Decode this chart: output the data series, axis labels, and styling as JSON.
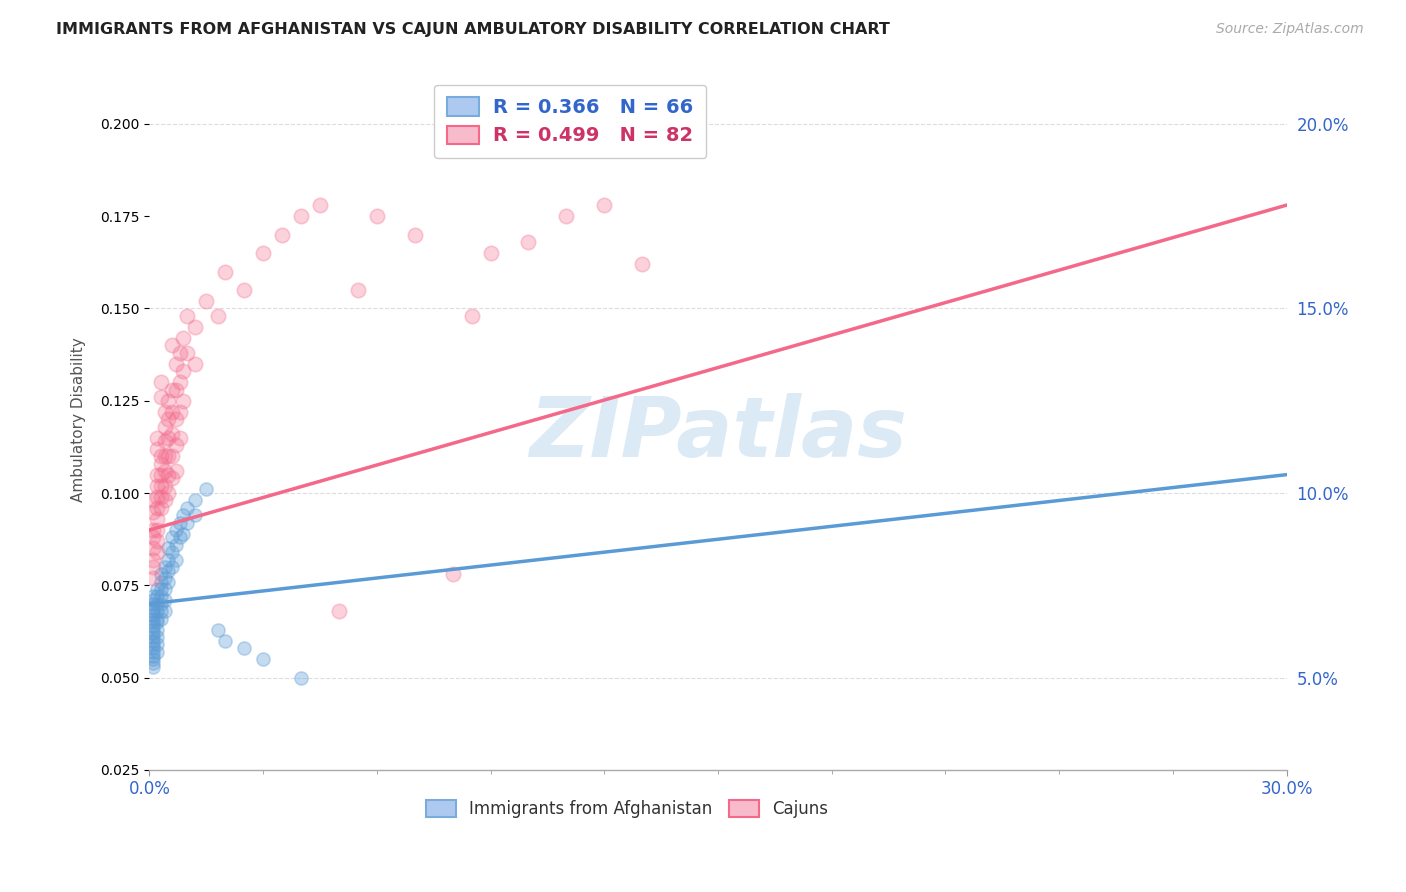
{
  "title": "IMMIGRANTS FROM AFGHANISTAN VS CAJUN AMBULATORY DISABILITY CORRELATION CHART",
  "source": "Source: ZipAtlas.com",
  "ylabel": "Ambulatory Disability",
  "xlim": [
    0.0,
    0.3
  ],
  "ylim": [
    0.025,
    0.215
  ],
  "xtick_positions": [
    0.0,
    0.3
  ],
  "xticklabels": [
    "0.0%",
    "30.0%"
  ],
  "ytick_positions": [
    0.05,
    0.1,
    0.15,
    0.2
  ],
  "yticklabels_right": [
    "5.0%",
    "10.0%",
    "15.0%",
    "20.0%"
  ],
  "watermark": "ZIPatlas",
  "background_color": "#ffffff",
  "grid_color": "#dddddd",
  "blue_color": "#5b9bd5",
  "pink_color": "#f4688a",
  "afghanistan_points": [
    [
      0.001,
      0.072
    ],
    [
      0.001,
      0.071
    ],
    [
      0.001,
      0.07
    ],
    [
      0.001,
      0.069
    ],
    [
      0.001,
      0.068
    ],
    [
      0.001,
      0.067
    ],
    [
      0.001,
      0.066
    ],
    [
      0.001,
      0.065
    ],
    [
      0.001,
      0.064
    ],
    [
      0.001,
      0.063
    ],
    [
      0.001,
      0.062
    ],
    [
      0.001,
      0.061
    ],
    [
      0.001,
      0.06
    ],
    [
      0.001,
      0.059
    ],
    [
      0.001,
      0.058
    ],
    [
      0.001,
      0.057
    ],
    [
      0.001,
      0.056
    ],
    [
      0.001,
      0.055
    ],
    [
      0.001,
      0.054
    ],
    [
      0.001,
      0.053
    ],
    [
      0.002,
      0.074
    ],
    [
      0.002,
      0.072
    ],
    [
      0.002,
      0.07
    ],
    [
      0.002,
      0.068
    ],
    [
      0.002,
      0.066
    ],
    [
      0.002,
      0.065
    ],
    [
      0.002,
      0.063
    ],
    [
      0.002,
      0.061
    ],
    [
      0.002,
      0.059
    ],
    [
      0.002,
      0.057
    ],
    [
      0.003,
      0.078
    ],
    [
      0.003,
      0.076
    ],
    [
      0.003,
      0.074
    ],
    [
      0.003,
      0.072
    ],
    [
      0.003,
      0.07
    ],
    [
      0.003,
      0.068
    ],
    [
      0.003,
      0.066
    ],
    [
      0.004,
      0.08
    ],
    [
      0.004,
      0.077
    ],
    [
      0.004,
      0.074
    ],
    [
      0.004,
      0.071
    ],
    [
      0.004,
      0.068
    ],
    [
      0.005,
      0.085
    ],
    [
      0.005,
      0.082
    ],
    [
      0.005,
      0.079
    ],
    [
      0.005,
      0.076
    ],
    [
      0.006,
      0.088
    ],
    [
      0.006,
      0.084
    ],
    [
      0.006,
      0.08
    ],
    [
      0.007,
      0.09
    ],
    [
      0.007,
      0.086
    ],
    [
      0.007,
      0.082
    ],
    [
      0.008,
      0.092
    ],
    [
      0.008,
      0.088
    ],
    [
      0.009,
      0.094
    ],
    [
      0.009,
      0.089
    ],
    [
      0.01,
      0.096
    ],
    [
      0.01,
      0.092
    ],
    [
      0.012,
      0.098
    ],
    [
      0.012,
      0.094
    ],
    [
      0.015,
      0.101
    ],
    [
      0.018,
      0.063
    ],
    [
      0.02,
      0.06
    ],
    [
      0.025,
      0.058
    ],
    [
      0.03,
      0.055
    ],
    [
      0.04,
      0.05
    ]
  ],
  "cajun_points": [
    [
      0.001,
      0.09
    ],
    [
      0.001,
      0.088
    ],
    [
      0.001,
      0.085
    ],
    [
      0.001,
      0.082
    ],
    [
      0.001,
      0.08
    ],
    [
      0.001,
      0.077
    ],
    [
      0.001,
      0.095
    ],
    [
      0.001,
      0.098
    ],
    [
      0.002,
      0.105
    ],
    [
      0.002,
      0.102
    ],
    [
      0.002,
      0.099
    ],
    [
      0.002,
      0.096
    ],
    [
      0.002,
      0.093
    ],
    [
      0.002,
      0.09
    ],
    [
      0.002,
      0.087
    ],
    [
      0.002,
      0.084
    ],
    [
      0.002,
      0.115
    ],
    [
      0.002,
      0.112
    ],
    [
      0.003,
      0.108
    ],
    [
      0.003,
      0.105
    ],
    [
      0.003,
      0.102
    ],
    [
      0.003,
      0.099
    ],
    [
      0.003,
      0.096
    ],
    [
      0.003,
      0.11
    ],
    [
      0.003,
      0.13
    ],
    [
      0.003,
      0.126
    ],
    [
      0.004,
      0.122
    ],
    [
      0.004,
      0.118
    ],
    [
      0.004,
      0.114
    ],
    [
      0.004,
      0.11
    ],
    [
      0.004,
      0.106
    ],
    [
      0.004,
      0.102
    ],
    [
      0.004,
      0.098
    ],
    [
      0.005,
      0.125
    ],
    [
      0.005,
      0.12
    ],
    [
      0.005,
      0.115
    ],
    [
      0.005,
      0.11
    ],
    [
      0.005,
      0.105
    ],
    [
      0.005,
      0.1
    ],
    [
      0.006,
      0.128
    ],
    [
      0.006,
      0.122
    ],
    [
      0.006,
      0.116
    ],
    [
      0.006,
      0.11
    ],
    [
      0.006,
      0.104
    ],
    [
      0.006,
      0.14
    ],
    [
      0.007,
      0.135
    ],
    [
      0.007,
      0.128
    ],
    [
      0.007,
      0.12
    ],
    [
      0.007,
      0.113
    ],
    [
      0.007,
      0.106
    ],
    [
      0.008,
      0.138
    ],
    [
      0.008,
      0.13
    ],
    [
      0.008,
      0.122
    ],
    [
      0.008,
      0.115
    ],
    [
      0.009,
      0.142
    ],
    [
      0.009,
      0.133
    ],
    [
      0.009,
      0.125
    ],
    [
      0.01,
      0.148
    ],
    [
      0.01,
      0.138
    ],
    [
      0.012,
      0.145
    ],
    [
      0.012,
      0.135
    ],
    [
      0.015,
      0.152
    ],
    [
      0.018,
      0.148
    ],
    [
      0.02,
      0.16
    ],
    [
      0.025,
      0.155
    ],
    [
      0.03,
      0.165
    ],
    [
      0.035,
      0.17
    ],
    [
      0.04,
      0.175
    ],
    [
      0.045,
      0.178
    ],
    [
      0.05,
      0.068
    ],
    [
      0.055,
      0.155
    ],
    [
      0.06,
      0.175
    ],
    [
      0.07,
      0.17
    ],
    [
      0.08,
      0.078
    ],
    [
      0.085,
      0.148
    ],
    [
      0.09,
      0.165
    ],
    [
      0.1,
      0.168
    ],
    [
      0.11,
      0.175
    ],
    [
      0.12,
      0.178
    ],
    [
      0.125,
      0.205
    ],
    [
      0.13,
      0.162
    ]
  ],
  "afghanistan_line": {
    "x0": 0.0,
    "y0": 0.07,
    "x1": 0.3,
    "y1": 0.105
  },
  "cajun_line": {
    "x0": 0.0,
    "y0": 0.09,
    "x1": 0.3,
    "y1": 0.178
  }
}
